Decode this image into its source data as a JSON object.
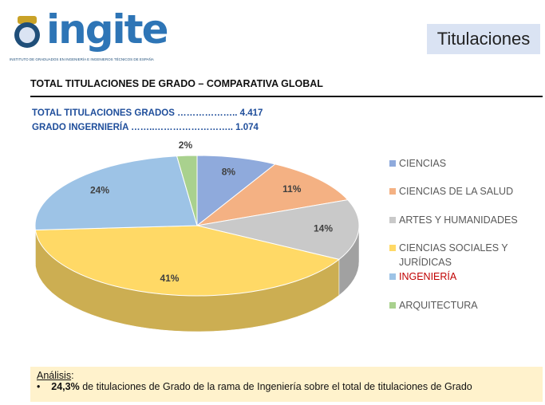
{
  "logo": {
    "name": "ingite",
    "caption": "INSTITUTO DE GRADUADOS EN INGENIERÍA E INGENIEROS TÉCNICOS DE ESPAÑA"
  },
  "header": {
    "title": "Titulaciones"
  },
  "section_title": "TOTAL TITULACIONES DE GRADO – COMPARATIVA GLOBAL",
  "stats": [
    "TOTAL TITULACIONES GRADOS ……………….. 4.417",
    "GRADO INGERNIERÍA ……..…………………….. 1.074"
  ],
  "analysis": {
    "label": "Análisis",
    "bullet_bold": "24,3%",
    "bullet_text": "de titulaciones de Grado de la rama de Ingeniería sobre el total de titulaciones de Grado"
  },
  "chart_data": {
    "type": "pie",
    "categories": [
      "CIENCIAS",
      "CIENCIAS DE LA SALUD",
      "ARTES Y HUMANIDADES",
      "CIENCIAS SOCIALES Y JURÍDICAS",
      "INGENIERÍA",
      "ARQUITECTURA"
    ],
    "values": [
      8,
      11,
      14,
      41,
      24,
      2
    ],
    "value_labels": [
      "8%",
      "11%",
      "14%",
      "41%",
      "24%",
      "2%"
    ],
    "colors": [
      "#8faadc",
      "#f4b183",
      "#c9c9c9",
      "#ffd966",
      "#9dc3e6",
      "#a9d18e"
    ],
    "legend_text_colors": [
      "#595959",
      "#595959",
      "#595959",
      "#595959",
      "#c00000",
      "#595959"
    ],
    "legend": "right"
  }
}
